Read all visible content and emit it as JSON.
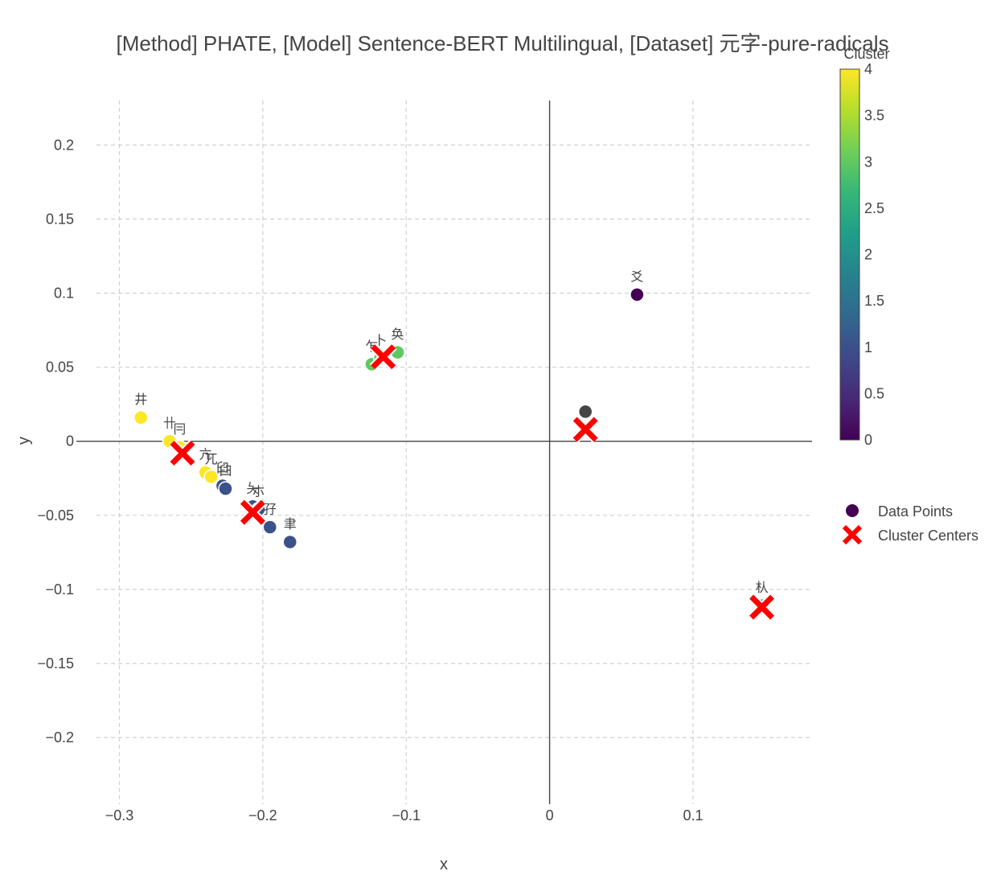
{
  "chart_data": {
    "type": "scatter",
    "title": "[Method] PHATE, [Model] Sentence-BERT Multilingual, [Dataset] 元字-pure-radicals",
    "xlabel": "x",
    "ylabel": "y",
    "xlim": [
      -0.33,
      0.183
    ],
    "ylim": [
      -0.245,
      0.23
    ],
    "x_ticks": [
      -0.3,
      -0.2,
      -0.1,
      0,
      0.1
    ],
    "x_tick_labels": [
      "−0.3",
      "−0.2",
      "−0.1",
      "0",
      "0.1"
    ],
    "y_ticks": [
      0.2,
      0.15,
      0.1,
      0.05,
      0,
      -0.05,
      -0.1,
      -0.15,
      -0.2
    ],
    "y_tick_labels": [
      "0.2",
      "0.15",
      "0.1",
      "0.05",
      "0",
      "−0.05",
      "−0.1",
      "−0.15",
      "−0.2"
    ],
    "grid": true,
    "legend_position": "right",
    "colorbar": {
      "title": "Cluster",
      "min": 0,
      "max": 4,
      "ticks": [
        4,
        3.5,
        3,
        2.5,
        2,
        1.5,
        1,
        0.5,
        0
      ],
      "tick_labels": [
        "4",
        "3.5",
        "3",
        "2.5",
        "2",
        "1.5",
        "1",
        "0.5",
        "0"
      ],
      "colorscale": [
        "#440154",
        "#482878",
        "#3e4989",
        "#31688e",
        "#26828e",
        "#1f9e89",
        "#35b779",
        "#6ece58",
        "#b5de2b",
        "#fde725"
      ]
    },
    "series": [
      {
        "name": "Data Points",
        "marker": "circle",
        "points": [
          {
            "x": -0.285,
            "y": 0.016,
            "cluster": 4,
            "label": "井"
          },
          {
            "x": -0.265,
            "y": 0.0,
            "cluster": 4,
            "label": "卄"
          },
          {
            "x": -0.258,
            "y": -0.004,
            "cluster": 4,
            "label": "冃"
          },
          {
            "x": -0.24,
            "y": -0.021,
            "cluster": 4,
            "label": "亢"
          },
          {
            "x": -0.236,
            "y": -0.024,
            "cluster": 4,
            "label": "兀"
          },
          {
            "x": -0.228,
            "y": -0.03,
            "cluster": 1,
            "label": "臼"
          },
          {
            "x": -0.226,
            "y": -0.032,
            "cluster": 1,
            "label": "臼"
          },
          {
            "x": -0.207,
            "y": -0.044,
            "cluster": 1,
            "label": "夨"
          },
          {
            "x": -0.203,
            "y": -0.046,
            "cluster": 1,
            "label": "朩"
          },
          {
            "x": -0.195,
            "y": -0.058,
            "cluster": 1,
            "label": "孖"
          },
          {
            "x": -0.181,
            "y": -0.068,
            "cluster": 1,
            "label": "聿"
          },
          {
            "x": -0.124,
            "y": 0.052,
            "cluster": 3,
            "label": "乍"
          },
          {
            "x": -0.118,
            "y": 0.056,
            "cluster": 3,
            "label": "卜"
          },
          {
            "x": -0.106,
            "y": 0.06,
            "cluster": 3,
            "label": "奂"
          },
          {
            "x": 0.061,
            "y": 0.099,
            "cluster": 0,
            "label": "爻"
          },
          {
            "x": 0.025,
            "y": 0.02,
            "cluster": 2,
            "label": ""
          },
          {
            "x": 0.148,
            "y": -0.111,
            "cluster": 2,
            "label": "朲"
          }
        ]
      },
      {
        "name": "Cluster Centers",
        "marker": "x",
        "color": "#ff0000",
        "points": [
          {
            "x": -0.256,
            "y": -0.008
          },
          {
            "x": -0.116,
            "y": 0.057
          },
          {
            "x": -0.207,
            "y": -0.048
          },
          {
            "x": 0.025,
            "y": 0.008
          },
          {
            "x": 0.148,
            "y": -0.112
          }
        ]
      }
    ]
  }
}
